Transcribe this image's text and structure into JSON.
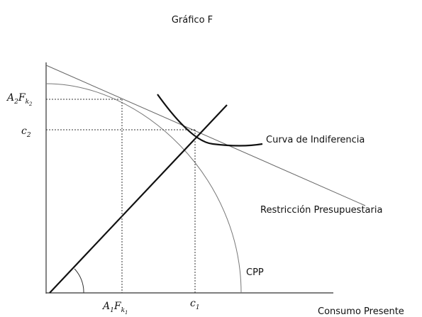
{
  "title": "Gráfico F",
  "y_labels": {
    "upper": {
      "a": "A",
      "a_sub": "2",
      "f": "F",
      "k": "k",
      "k_sub": "2"
    },
    "lower": {
      "c": "c",
      "c_sub": "2"
    }
  },
  "x_labels": {
    "left": {
      "a": "A",
      "a_sub": "1",
      "f": "F",
      "k": "k",
      "k_sub": "1"
    },
    "right": {
      "c": "c",
      "c_sub": "1"
    }
  },
  "curves": {
    "indifference": "Curva de Indiferencia",
    "budget": "Restricción Presupuestaria",
    "ppf": "CPP"
  },
  "x_axis_label": "Consumo Presente"
}
